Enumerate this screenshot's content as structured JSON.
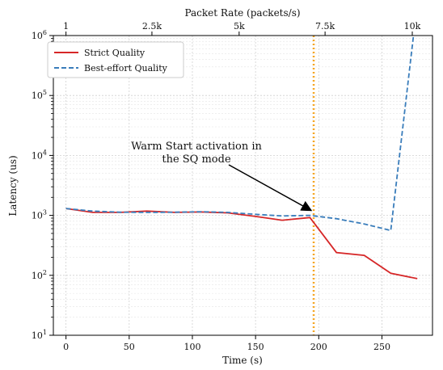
{
  "chart_data": {
    "type": "line",
    "title": "",
    "xlabel": "Time (s)",
    "ylabel": "Latency (us)",
    "top_xlabel": "Packet Rate (packets/s)",
    "xlim": [
      -10,
      290
    ],
    "ylim": [
      10,
      1000000
    ],
    "y_scale": "log",
    "grid": true,
    "legend_position": "upper-left",
    "x_ticks": [
      0,
      50,
      100,
      150,
      200,
      250
    ],
    "x_tick_labels": [
      "0",
      "50",
      "100",
      "150",
      "200",
      "250"
    ],
    "y_ticks": [
      10,
      100,
      1000,
      10000,
      100000,
      1000000
    ],
    "y_tick_labels": [
      {
        "base": "10",
        "exp": "1"
      },
      {
        "base": "10",
        "exp": "2"
      },
      {
        "base": "10",
        "exp": "3"
      },
      {
        "base": "10",
        "exp": "4"
      },
      {
        "base": "10",
        "exp": "5"
      },
      {
        "base": "10",
        "exp": "6"
      }
    ],
    "top_ticks": [
      0,
      68,
      137,
      205,
      274
    ],
    "top_tick_labels": [
      "1",
      "2.5k",
      "5k",
      "7.5k",
      "10k"
    ],
    "series": [
      {
        "name": "Strict Quality",
        "color": "#d62728",
        "style": "solid",
        "x": [
          0,
          21,
          43,
          64,
          86,
          107,
          128,
          150,
          171,
          193,
          214,
          236,
          257,
          278
        ],
        "y": [
          1300,
          1120,
          1120,
          1180,
          1120,
          1140,
          1100,
          960,
          830,
          920,
          240,
          215,
          108,
          88
        ]
      },
      {
        "name": "Best-effort Quality",
        "color": "#3a7dbb",
        "style": "dashed",
        "x": [
          0,
          21,
          43,
          64,
          86,
          107,
          128,
          150,
          171,
          193,
          214,
          236,
          257,
          275
        ],
        "y": [
          1300,
          1180,
          1130,
          1120,
          1130,
          1150,
          1120,
          1040,
          980,
          1000,
          880,
          720,
          560,
          1000000
        ]
      }
    ],
    "vline": {
      "x": 196,
      "color": "#f5a623"
    },
    "annotation": {
      "lines": [
        "Warm Start activation in",
        "the SQ mode"
      ],
      "arrow_to": {
        "x": 196,
        "y": 1000
      }
    }
  }
}
